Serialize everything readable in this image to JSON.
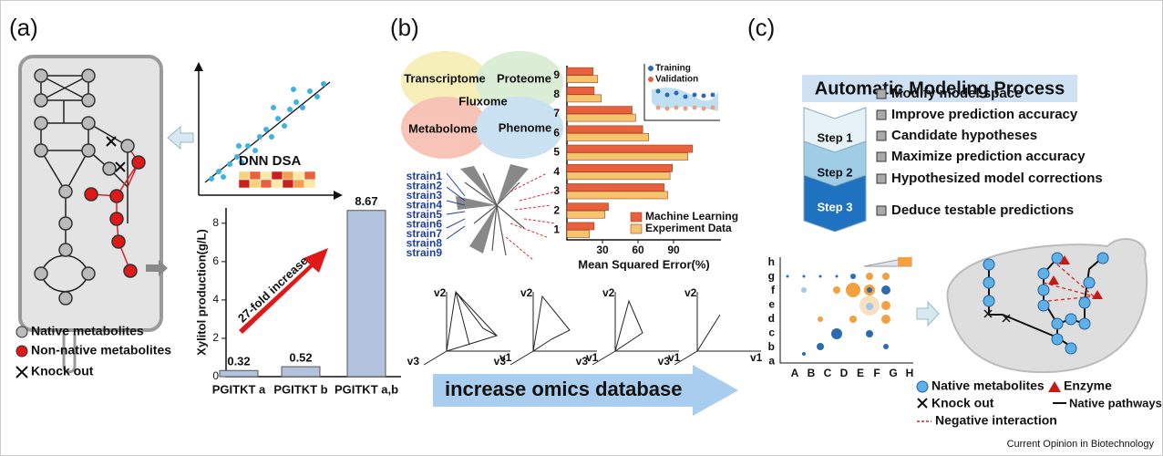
{
  "panels": [
    {
      "label": "(a)",
      "legend": [
        "Native metabolites",
        "Non-native metabolites",
        "Knock out"
      ],
      "scatter_label": "DNN DSA",
      "bar_chart": {
        "type": "bar",
        "ylabel": "Xylitol production(g/L)",
        "categories": [
          "PGITKT a",
          "PGITKT b",
          "PGITKT a,b"
        ],
        "values": [
          0.32,
          0.52,
          8.67
        ],
        "color": "#b3c2dd",
        "ylim": [
          0,
          8.8
        ],
        "yticks": [
          0,
          2,
          4,
          6,
          8
        ],
        "annotation": "27-fold increase"
      }
    },
    {
      "label": "(b)",
      "venn": [
        "Transcriptome",
        "Proteome",
        "Fluxome",
        "Metabolome",
        "Phenome"
      ],
      "strains": [
        "strain1",
        "strain2",
        "strain3",
        "strain4",
        "strain5",
        "strain6",
        "strain7",
        "strain8",
        "strain9"
      ],
      "hbar_chart": {
        "type": "hbar",
        "xlabel": "Mean Squared Error(%)",
        "categories": [
          "1",
          "2",
          "3",
          "4",
          "5",
          "6",
          "7",
          "8",
          "9"
        ],
        "series": [
          {
            "name": "Machine Learning",
            "color": "#e8603c",
            "values": [
              23,
              35,
              82,
              89,
              106,
              64,
              55,
              23,
              22
            ]
          },
          {
            "name": "Experiment Data",
            "color": "#f7c46e",
            "values": [
              19,
              32,
              85,
              87,
              102,
              69,
              58,
              29,
              26
            ]
          }
        ],
        "xlim": [
          0,
          130
        ],
        "xticks": [
          30,
          60,
          90
        ]
      },
      "inset_legend": [
        "Training",
        "Validation"
      ],
      "axis_names": [
        "v1",
        "v2",
        "v3"
      ],
      "banner": "increase omics database"
    },
    {
      "label": "(c)",
      "title": "Automatic Modeling Process",
      "steps": [
        "Step 1",
        "Step 2",
        "Step 3"
      ],
      "items": [
        "Modify model space",
        "Improve prediction accuracy",
        "Candidate hypotheses",
        "Maximize prediction accuracy",
        "Hypothesized model corrections",
        "Deduce testable predictions"
      ],
      "bubble_columns": [
        "A",
        "B",
        "C",
        "D",
        "E",
        "F",
        "G",
        "H"
      ],
      "bubble_rows": [
        "h",
        "g",
        "f",
        "e",
        "d",
        "c",
        "b",
        "a"
      ],
      "legend": [
        "Native metabolites",
        "Enzyme",
        "Knock out",
        "Native pathways",
        "Negative interaction"
      ]
    }
  ],
  "footer": "Current Opinion in Biotechnology"
}
